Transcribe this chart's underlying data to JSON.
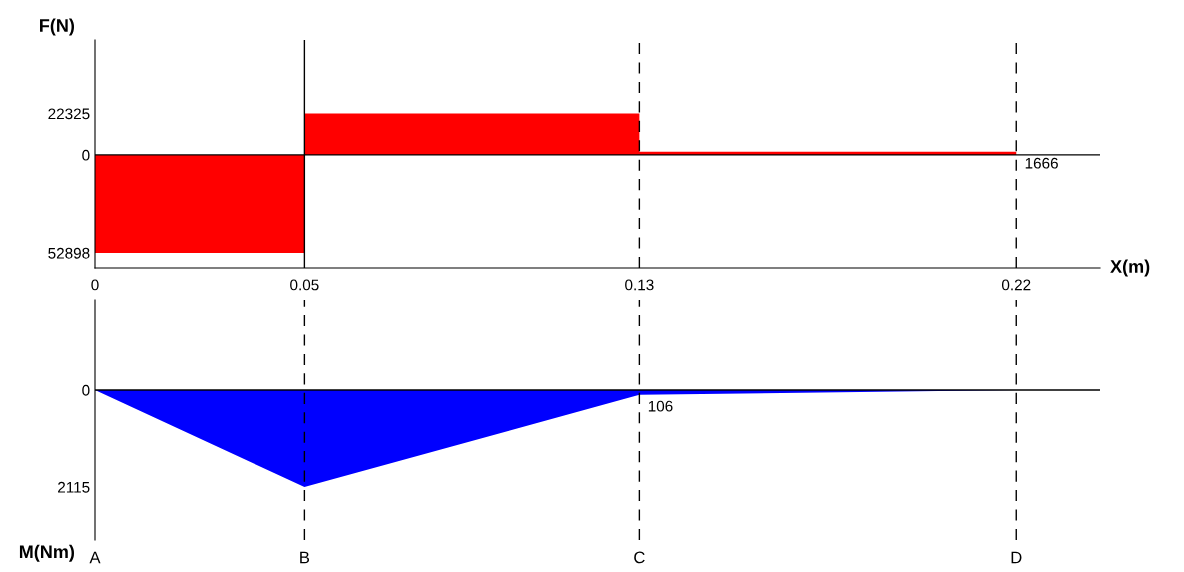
{
  "chart_data": [
    {
      "type": "area",
      "ylabel": "F(N)",
      "xlabel": "X(m)",
      "series": [
        {
          "color": "#ff0000",
          "x": [
            0,
            0.05,
            0.05,
            0.13,
            0.13,
            0.22
          ],
          "values": [
            -52898,
            -52898,
            22325,
            22325,
            1666,
            1666
          ]
        }
      ],
      "xlim": [
        0,
        0.24
      ],
      "xticks": [
        0,
        0.05,
        0.13,
        0.22
      ],
      "ylim": [
        -61000,
        62000
      ],
      "yticks": [
        22325,
        0,
        {
          "value": -52898,
          "label": "52898"
        }
      ],
      "annotations": [
        {
          "text": "1666",
          "x": 0.22,
          "y": 1666
        }
      ],
      "ref_lines": [
        {
          "axis": "y",
          "value": 0,
          "color": "#000000",
          "line_style": "solid"
        },
        {
          "axis": "x",
          "value": 0.05,
          "color": "#000000",
          "line_style": "solid"
        },
        {
          "axis": "x",
          "value": 0.13,
          "color": "#000000",
          "line_style": "dashed"
        },
        {
          "axis": "x",
          "value": 0.22,
          "color": "#000000",
          "line_style": "dashed"
        }
      ],
      "grid": false
    },
    {
      "type": "area",
      "ylabel": "M(Nm)",
      "series": [
        {
          "color": "#0000ff",
          "x": [
            0,
            0.05,
            0.13,
            0.22
          ],
          "values": [
            0,
            -2115,
            -106,
            0
          ]
        }
      ],
      "xlim": [
        0,
        0.24
      ],
      "xticks": [
        0,
        0.05,
        0.13,
        0.22
      ],
      "tick_labels": "y",
      "ylim": [
        -3270,
        1960
      ],
      "yticks": [
        0,
        {
          "value": -2115,
          "label": "2115"
        }
      ],
      "annotations": [
        {
          "text": "106",
          "x": 0.13,
          "y": -106
        },
        "A",
        "B",
        "C",
        "D"
      ],
      "ref_lines": [
        {
          "axis": "y",
          "value": 0,
          "color": "#000000",
          "line_style": "solid"
        },
        {
          "axis": "x",
          "value": 0.05,
          "color": "#000000",
          "line_style": "dashed"
        },
        {
          "axis": "x",
          "value": 0.13,
          "color": "#000000",
          "line_style": "dashed"
        },
        {
          "axis": "x",
          "value": 0.22,
          "color": "#000000",
          "line_style": "dashed"
        }
      ],
      "grid": false
    }
  ]
}
